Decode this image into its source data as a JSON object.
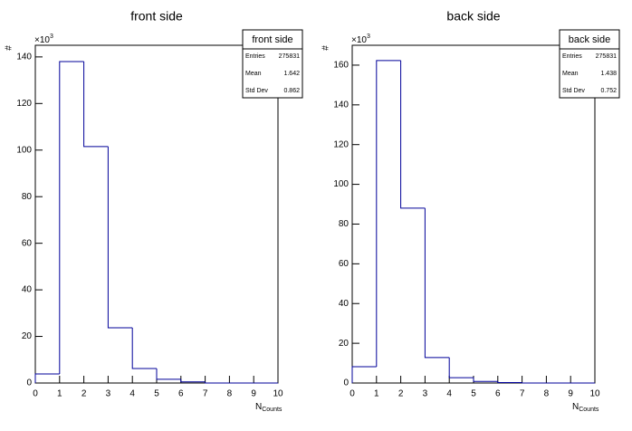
{
  "chart_data": [
    {
      "type": "histogram",
      "title": "front side",
      "x_label": "N",
      "x_label_sub": "Counts",
      "y_label": "#",
      "y_multiplier": "×10",
      "y_multiplier_exp": "3",
      "bins": [
        0,
        1,
        2,
        3,
        4,
        5,
        6,
        7,
        8,
        9,
        10
      ],
      "counts": [
        3.9,
        138,
        101.5,
        23.7,
        6.2,
        1.6,
        0.5,
        0,
        0,
        0
      ],
      "color": "#000099",
      "xlim": [
        0,
        10
      ],
      "xticks": [
        0,
        1,
        2,
        3,
        4,
        5,
        6,
        7,
        8,
        9,
        10
      ],
      "ylim": [
        0,
        145
      ],
      "yticks": [
        0,
        20,
        40,
        60,
        80,
        100,
        120,
        140
      ],
      "stats": {
        "title": "front side",
        "rows": [
          [
            "Entries",
            "275831"
          ],
          [
            "Mean",
            "1.642"
          ],
          [
            "Std Dev",
            "0.862"
          ]
        ]
      }
    },
    {
      "type": "histogram",
      "title": "back side",
      "x_label": "N",
      "x_label_sub": "Counts",
      "y_label": "#",
      "y_multiplier": "×10",
      "y_multiplier_exp": "3",
      "bins": [
        0,
        1,
        2,
        3,
        4,
        5,
        6,
        7,
        8,
        9,
        10
      ],
      "counts": [
        8.2,
        162.3,
        88,
        12.8,
        2.7,
        0.8,
        0.2,
        0,
        0,
        0
      ],
      "color": "#000099",
      "xlim": [
        0,
        10
      ],
      "xticks": [
        0,
        1,
        2,
        3,
        4,
        5,
        6,
        7,
        8,
        9,
        10
      ],
      "ylim": [
        0,
        170
      ],
      "yticks": [
        0,
        20,
        40,
        60,
        80,
        100,
        120,
        140,
        160
      ],
      "stats": {
        "title": "back side",
        "rows": [
          [
            "Entries",
            "275831"
          ],
          [
            "Mean",
            "1.438"
          ],
          [
            "Std Dev",
            "0.752"
          ]
        ]
      }
    }
  ]
}
